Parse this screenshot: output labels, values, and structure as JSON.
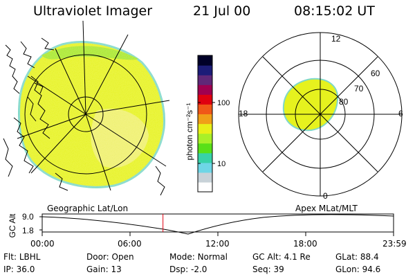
{
  "header": {
    "title": "Ultraviolet Imager",
    "date": "21 Jul 00",
    "time": "08:15:02 UT"
  },
  "colorbar": {
    "unit_label": "photon cm⁻²s⁻¹",
    "ticks": [
      "100",
      "10"
    ],
    "colors": [
      "#ffffff",
      "#c8d2d8",
      "#6ed6e6",
      "#38d2a8",
      "#58e018",
      "#a8f028",
      "#e8f018",
      "#f0a018",
      "#f05818",
      "#e00010",
      "#a00050",
      "#602878",
      "#1c1c78",
      "#000028"
    ]
  },
  "left_panel": {
    "label": "Geographic Lat/Lon",
    "image_color": "#e6f21e"
  },
  "right_panel": {
    "label": "Apex MLat/MLT",
    "mlt_labels": [
      "12",
      "18",
      "6",
      "0"
    ],
    "lat_labels": [
      "60",
      "70",
      "80"
    ]
  },
  "altitude_plot": {
    "ylabel": "GC Alt",
    "yticks": [
      "9.0",
      "1.8"
    ],
    "xticks": [
      "00:00",
      "06:00",
      "12:00",
      "18:00",
      "23:59"
    ],
    "current_time_hours": 8.25
  },
  "info": {
    "rows": [
      [
        {
          "key": "Flt:",
          "val": "LBHL"
        },
        {
          "key": "Door:",
          "val": "Open"
        },
        {
          "key": "Mode:",
          "val": "Normal"
        },
        {
          "key": "GC Alt:",
          "val": "4.1 Re"
        },
        {
          "key": "GLat:",
          "val": "88.4"
        }
      ],
      [
        {
          "key": "IP:",
          "val": "36.0"
        },
        {
          "key": "Gain:",
          "val": "13"
        },
        {
          "key": "Dsp:",
          "val": "-2.0"
        },
        {
          "key": "Seq:",
          "val": "39"
        },
        {
          "key": "GLon:",
          "val": "94.6"
        }
      ]
    ]
  }
}
